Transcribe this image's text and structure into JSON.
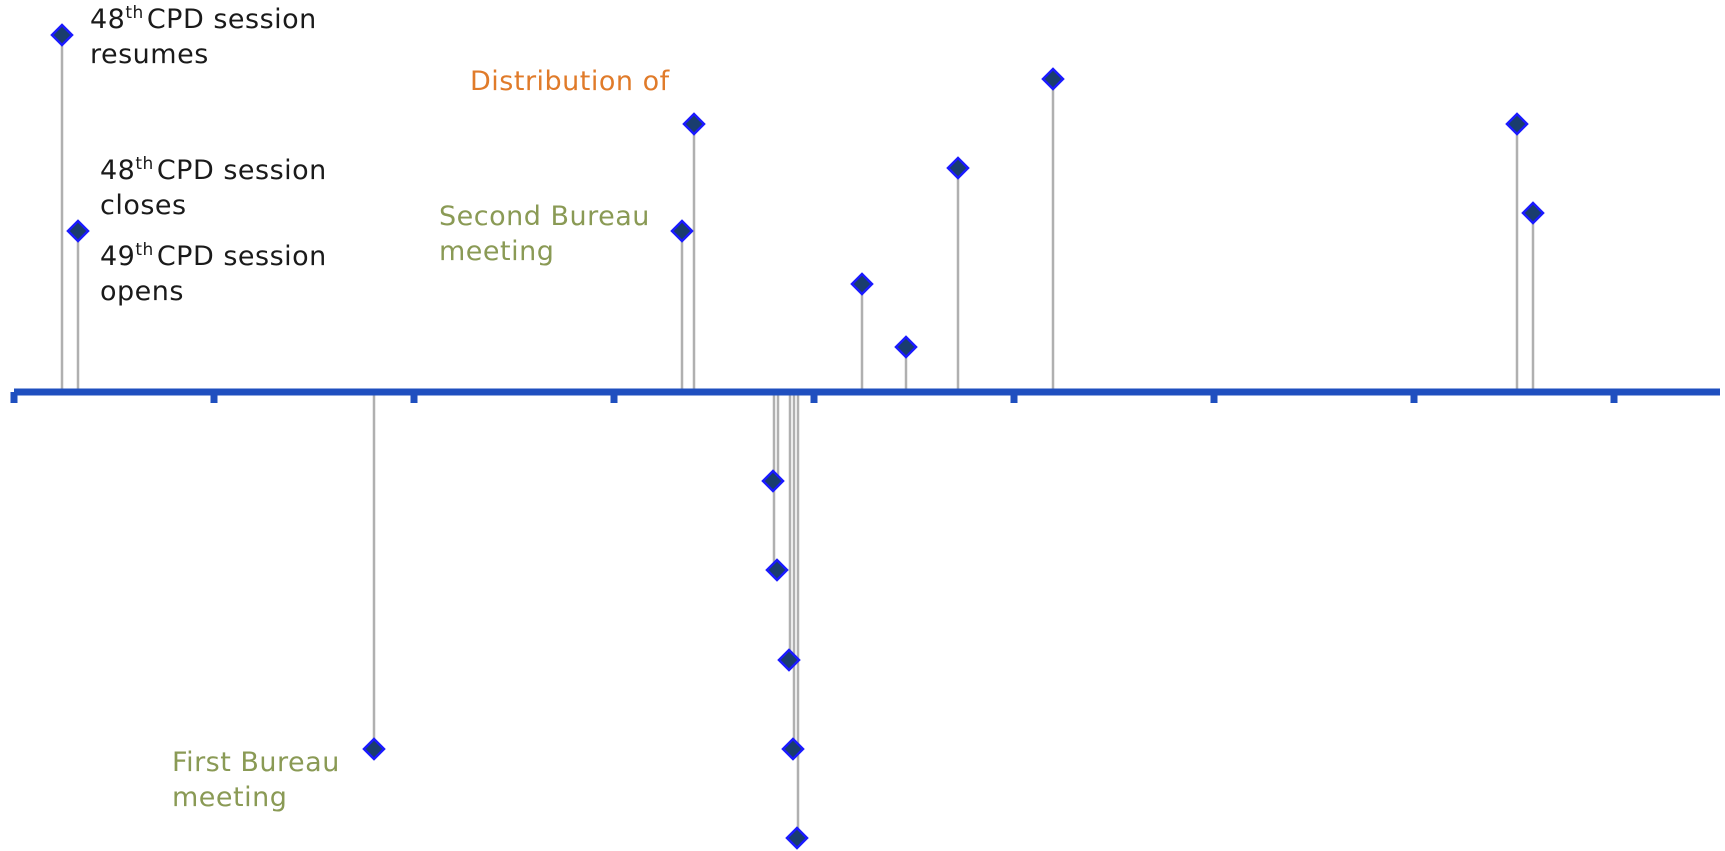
{
  "colors": {
    "axis": "#1f4fbf",
    "stem": "#b0b0b0",
    "marker_fill": "#1a3d6e",
    "marker_stroke": "#1a1aff",
    "label_dark": "#1a1a1a",
    "label_green": "#8a9a55",
    "label_orange": "#e07b2a"
  },
  "labels": {
    "resumes_48": {
      "num": "48",
      "sup": "th",
      "rest": "CPD session",
      "line2": "resumes"
    },
    "closes_48": {
      "num": "48",
      "sup": "th",
      "rest": "CPD session",
      "line2": "closes"
    },
    "opens_49": {
      "num": "49",
      "sup": "th",
      "rest": "CPD session",
      "line2": "opens"
    },
    "distribution": {
      "line1": "Distribution of"
    },
    "second_bureau": {
      "line1": "Second Bureau",
      "line2": "meeting"
    },
    "first_bureau": {
      "line1": "First Bureau",
      "line2": "meeting"
    }
  },
  "timeline": {
    "tick_count": 9,
    "events": [
      {
        "id": "e1"
      },
      {
        "id": "e2"
      },
      {
        "id": "e3"
      },
      {
        "id": "e4"
      },
      {
        "id": "e5"
      },
      {
        "id": "e6"
      },
      {
        "id": "e7"
      },
      {
        "id": "e8"
      },
      {
        "id": "e9"
      },
      {
        "id": "e10"
      },
      {
        "id": "e11"
      },
      {
        "id": "e12"
      },
      {
        "id": "e13"
      },
      {
        "id": "e14"
      },
      {
        "id": "e15"
      },
      {
        "id": "e16"
      },
      {
        "id": "e17"
      }
    ]
  }
}
